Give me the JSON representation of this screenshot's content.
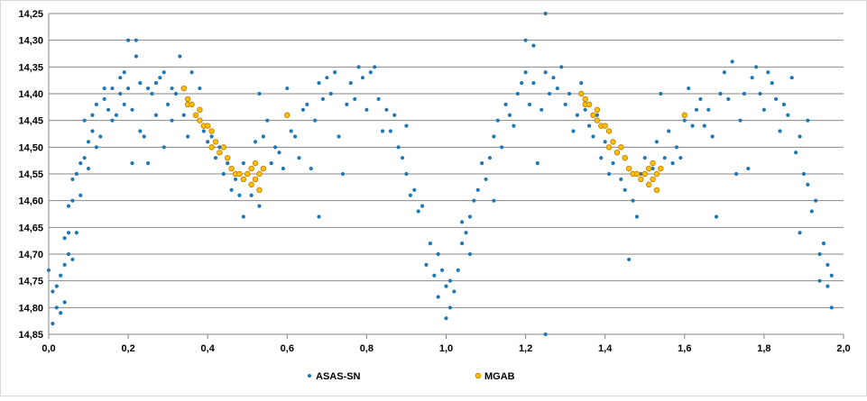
{
  "chart_data": {
    "type": "scatter",
    "title": "",
    "xlabel": "",
    "ylabel": "",
    "xlim": [
      0.0,
      2.0
    ],
    "ylim": [
      14.85,
      14.25
    ],
    "y_inverted": true,
    "grid": "horizontal",
    "legend_position": "bottom",
    "x_ticks": [
      "0,0",
      "0,2",
      "0,4",
      "0,6",
      "0,8",
      "1,0",
      "1,2",
      "1,4",
      "1,6",
      "1,8",
      "2,0"
    ],
    "y_ticks": [
      "14,25",
      "14,30",
      "14,35",
      "14,40",
      "14,45",
      "14,50",
      "14,55",
      "14,60",
      "14,65",
      "14,70",
      "14,75",
      "14,80",
      "14,85"
    ],
    "series": [
      {
        "name": "ASAS-SN",
        "color": "#1f77b4",
        "points": [
          [
            0.0,
            14.73
          ],
          [
            0.01,
            14.83
          ],
          [
            0.01,
            14.77
          ],
          [
            0.02,
            14.8
          ],
          [
            0.02,
            14.76
          ],
          [
            0.03,
            14.74
          ],
          [
            0.03,
            14.81
          ],
          [
            0.04,
            14.72
          ],
          [
            0.04,
            14.79
          ],
          [
            0.04,
            14.67
          ],
          [
            0.05,
            14.66
          ],
          [
            0.05,
            14.61
          ],
          [
            0.05,
            14.7
          ],
          [
            0.06,
            14.6
          ],
          [
            0.06,
            14.56
          ],
          [
            0.06,
            14.71
          ],
          [
            0.07,
            14.66
          ],
          [
            0.07,
            14.55
          ],
          [
            0.08,
            14.59
          ],
          [
            0.08,
            14.53
          ],
          [
            0.09,
            14.52
          ],
          [
            0.09,
            14.45
          ],
          [
            0.1,
            14.49
          ],
          [
            0.1,
            14.54
          ],
          [
            0.11,
            14.47
          ],
          [
            0.11,
            14.44
          ],
          [
            0.12,
            14.5
          ],
          [
            0.12,
            14.42
          ],
          [
            0.13,
            14.48
          ],
          [
            0.14,
            14.41
          ],
          [
            0.14,
            14.39
          ],
          [
            0.15,
            14.43
          ],
          [
            0.16,
            14.45
          ],
          [
            0.16,
            14.39
          ],
          [
            0.17,
            14.44
          ],
          [
            0.18,
            14.37
          ],
          [
            0.18,
            14.4
          ],
          [
            0.19,
            14.36
          ],
          [
            0.19,
            14.42
          ],
          [
            0.2,
            14.3
          ],
          [
            0.2,
            14.39
          ],
          [
            0.21,
            14.43
          ],
          [
            0.21,
            14.53
          ],
          [
            0.22,
            14.33
          ],
          [
            0.22,
            14.3
          ],
          [
            0.23,
            14.47
          ],
          [
            0.23,
            14.38
          ],
          [
            0.24,
            14.48
          ],
          [
            0.25,
            14.53
          ],
          [
            0.25,
            14.39
          ],
          [
            0.26,
            14.4
          ],
          [
            0.27,
            14.44
          ],
          [
            0.27,
            14.38
          ],
          [
            0.28,
            14.37
          ],
          [
            0.29,
            14.36
          ],
          [
            0.29,
            14.5
          ],
          [
            0.3,
            14.42
          ],
          [
            0.31,
            14.39
          ],
          [
            0.31,
            14.45
          ],
          [
            0.32,
            14.4
          ],
          [
            0.33,
            14.33
          ],
          [
            0.34,
            14.39
          ],
          [
            0.34,
            14.44
          ],
          [
            0.35,
            14.48
          ],
          [
            0.36,
            14.36
          ],
          [
            0.37,
            14.44
          ],
          [
            0.38,
            14.39
          ],
          [
            0.39,
            14.47
          ],
          [
            0.4,
            14.49
          ],
          [
            0.41,
            14.48
          ],
          [
            0.42,
            14.52
          ],
          [
            0.43,
            14.5
          ],
          [
            0.44,
            14.55
          ],
          [
            0.45,
            14.53
          ],
          [
            0.46,
            14.58
          ],
          [
            0.47,
            14.56
          ],
          [
            0.48,
            14.59
          ],
          [
            0.49,
            14.53
          ],
          [
            0.49,
            14.63
          ],
          [
            0.5,
            14.55
          ],
          [
            0.51,
            14.59
          ],
          [
            0.52,
            14.49
          ],
          [
            0.53,
            14.4
          ],
          [
            0.53,
            14.61
          ],
          [
            0.54,
            14.48
          ],
          [
            0.55,
            14.45
          ],
          [
            0.56,
            14.53
          ],
          [
            0.57,
            14.5
          ],
          [
            0.58,
            14.51
          ],
          [
            0.59,
            14.54
          ],
          [
            0.6,
            14.39
          ],
          [
            0.61,
            14.47
          ],
          [
            0.62,
            14.48
          ],
          [
            0.63,
            14.52
          ],
          [
            0.64,
            14.43
          ],
          [
            0.65,
            14.42
          ],
          [
            0.66,
            14.54
          ],
          [
            0.67,
            14.45
          ],
          [
            0.68,
            14.63
          ],
          [
            0.68,
            14.38
          ],
          [
            0.69,
            14.41
          ],
          [
            0.7,
            14.37
          ],
          [
            0.71,
            14.4
          ],
          [
            0.72,
            14.36
          ],
          [
            0.73,
            14.48
          ],
          [
            0.74,
            14.55
          ],
          [
            0.75,
            14.42
          ],
          [
            0.76,
            14.38
          ],
          [
            0.77,
            14.41
          ],
          [
            0.78,
            14.35
          ],
          [
            0.79,
            14.37
          ],
          [
            0.8,
            14.43
          ],
          [
            0.81,
            14.36
          ],
          [
            0.82,
            14.35
          ],
          [
            0.83,
            14.41
          ],
          [
            0.84,
            14.47
          ],
          [
            0.85,
            14.43
          ],
          [
            0.86,
            14.47
          ],
          [
            0.87,
            14.44
          ],
          [
            0.88,
            14.5
          ],
          [
            0.89,
            14.52
          ],
          [
            0.9,
            14.55
          ],
          [
            0.9,
            14.46
          ],
          [
            0.91,
            14.59
          ],
          [
            0.92,
            14.58
          ],
          [
            0.93,
            14.62
          ],
          [
            0.94,
            14.61
          ],
          [
            0.95,
            14.72
          ],
          [
            0.96,
            14.68
          ],
          [
            0.97,
            14.74
          ],
          [
            0.98,
            14.78
          ],
          [
            0.98,
            14.7
          ],
          [
            0.99,
            14.73
          ],
          [
            1.0,
            14.82
          ],
          [
            1.0,
            14.76
          ],
          [
            1.01,
            14.8
          ],
          [
            1.01,
            14.75
          ],
          [
            1.02,
            14.77
          ],
          [
            1.03,
            14.73
          ],
          [
            1.04,
            14.68
          ],
          [
            1.04,
            14.64
          ],
          [
            1.05,
            14.66
          ],
          [
            1.06,
            14.63
          ],
          [
            1.06,
            14.7
          ],
          [
            1.07,
            14.6
          ],
          [
            1.08,
            14.58
          ],
          [
            1.09,
            14.53
          ],
          [
            1.1,
            14.56
          ],
          [
            1.11,
            14.52
          ],
          [
            1.12,
            14.48
          ],
          [
            1.12,
            14.6
          ],
          [
            1.13,
            14.45
          ],
          [
            1.14,
            14.5
          ],
          [
            1.15,
            14.42
          ],
          [
            1.16,
            14.44
          ],
          [
            1.17,
            14.46
          ],
          [
            1.18,
            14.4
          ],
          [
            1.19,
            14.38
          ],
          [
            1.2,
            14.3
          ],
          [
            1.2,
            14.36
          ],
          [
            1.21,
            14.42
          ],
          [
            1.22,
            14.31
          ],
          [
            1.22,
            14.38
          ],
          [
            1.23,
            14.53
          ],
          [
            1.24,
            14.43
          ],
          [
            1.25,
            14.36
          ],
          [
            1.26,
            14.4
          ],
          [
            1.27,
            14.37
          ],
          [
            1.28,
            14.39
          ],
          [
            1.29,
            14.35
          ],
          [
            1.3,
            14.42
          ],
          [
            1.31,
            14.4
          ],
          [
            1.32,
            14.47
          ],
          [
            1.33,
            14.44
          ],
          [
            1.34,
            14.38
          ],
          [
            1.35,
            14.43
          ],
          [
            1.36,
            14.46
          ],
          [
            1.37,
            14.48
          ],
          [
            1.38,
            14.44
          ],
          [
            1.39,
            14.52
          ],
          [
            1.4,
            14.49
          ],
          [
            1.41,
            14.55
          ],
          [
            1.42,
            14.53
          ],
          [
            1.43,
            14.51
          ],
          [
            1.44,
            14.56
          ],
          [
            1.45,
            14.58
          ],
          [
            1.46,
            14.71
          ],
          [
            1.47,
            14.6
          ],
          [
            1.48,
            14.63
          ],
          [
            1.49,
            14.55
          ],
          [
            1.5,
            14.52
          ],
          [
            1.51,
            14.57
          ],
          [
            1.52,
            14.54
          ],
          [
            1.53,
            14.49
          ],
          [
            1.54,
            14.4
          ],
          [
            1.55,
            14.52
          ],
          [
            1.56,
            14.47
          ],
          [
            1.57,
            14.53
          ],
          [
            1.58,
            14.5
          ],
          [
            1.59,
            14.52
          ],
          [
            1.6,
            14.45
          ],
          [
            1.61,
            14.39
          ],
          [
            1.62,
            14.46
          ],
          [
            1.63,
            14.43
          ],
          [
            1.64,
            14.41
          ],
          [
            1.65,
            14.46
          ],
          [
            1.66,
            14.43
          ],
          [
            1.67,
            14.48
          ],
          [
            1.68,
            14.63
          ],
          [
            1.69,
            14.4
          ],
          [
            1.7,
            14.36
          ],
          [
            1.71,
            14.41
          ],
          [
            1.72,
            14.34
          ],
          [
            1.73,
            14.55
          ],
          [
            1.74,
            14.45
          ],
          [
            1.75,
            14.4
          ],
          [
            1.76,
            14.54
          ],
          [
            1.77,
            14.37
          ],
          [
            1.78,
            14.35
          ],
          [
            1.79,
            14.4
          ],
          [
            1.8,
            14.43
          ],
          [
            1.81,
            14.36
          ],
          [
            1.82,
            14.38
          ],
          [
            1.83,
            14.41
          ],
          [
            1.84,
            14.47
          ],
          [
            1.85,
            14.42
          ],
          [
            1.86,
            14.44
          ],
          [
            1.87,
            14.37
          ],
          [
            1.88,
            14.51
          ],
          [
            1.89,
            14.48
          ],
          [
            1.89,
            14.66
          ],
          [
            1.9,
            14.55
          ],
          [
            1.91,
            14.45
          ],
          [
            1.91,
            14.57
          ],
          [
            1.92,
            14.62
          ],
          [
            1.93,
            14.6
          ],
          [
            1.94,
            14.7
          ],
          [
            1.94,
            14.75
          ],
          [
            1.95,
            14.68
          ],
          [
            1.96,
            14.76
          ],
          [
            1.96,
            14.72
          ],
          [
            1.97,
            14.8
          ],
          [
            1.97,
            14.74
          ],
          [
            1.25,
            14.85
          ],
          [
            1.25,
            14.25
          ]
        ]
      },
      {
        "name": "MGAB",
        "color": "#ffc000",
        "points": [
          [
            0.34,
            14.39
          ],
          [
            0.35,
            14.41
          ],
          [
            0.35,
            14.42
          ],
          [
            0.36,
            14.42
          ],
          [
            0.37,
            14.44
          ],
          [
            0.38,
            14.43
          ],
          [
            0.38,
            14.45
          ],
          [
            0.39,
            14.46
          ],
          [
            0.4,
            14.46
          ],
          [
            0.41,
            14.47
          ],
          [
            0.41,
            14.5
          ],
          [
            0.42,
            14.49
          ],
          [
            0.43,
            14.51
          ],
          [
            0.44,
            14.5
          ],
          [
            0.45,
            14.52
          ],
          [
            0.46,
            14.54
          ],
          [
            0.47,
            14.55
          ],
          [
            0.48,
            14.55
          ],
          [
            0.49,
            14.56
          ],
          [
            0.5,
            14.55
          ],
          [
            0.51,
            14.57
          ],
          [
            0.51,
            14.54
          ],
          [
            0.52,
            14.56
          ],
          [
            0.52,
            14.53
          ],
          [
            0.53,
            14.58
          ],
          [
            0.53,
            14.55
          ],
          [
            0.54,
            14.54
          ],
          [
            0.6,
            14.44
          ],
          [
            1.34,
            14.4
          ],
          [
            1.35,
            14.41
          ],
          [
            1.35,
            14.42
          ],
          [
            1.36,
            14.42
          ],
          [
            1.37,
            14.44
          ],
          [
            1.38,
            14.43
          ],
          [
            1.38,
            14.45
          ],
          [
            1.39,
            14.46
          ],
          [
            1.4,
            14.46
          ],
          [
            1.41,
            14.47
          ],
          [
            1.41,
            14.5
          ],
          [
            1.42,
            14.49
          ],
          [
            1.43,
            14.51
          ],
          [
            1.44,
            14.5
          ],
          [
            1.45,
            14.52
          ],
          [
            1.46,
            14.54
          ],
          [
            1.47,
            14.55
          ],
          [
            1.48,
            14.55
          ],
          [
            1.49,
            14.56
          ],
          [
            1.5,
            14.55
          ],
          [
            1.51,
            14.57
          ],
          [
            1.51,
            14.54
          ],
          [
            1.52,
            14.56
          ],
          [
            1.52,
            14.53
          ],
          [
            1.53,
            14.58
          ],
          [
            1.53,
            14.55
          ],
          [
            1.54,
            14.54
          ],
          [
            1.6,
            14.44
          ]
        ]
      }
    ]
  }
}
